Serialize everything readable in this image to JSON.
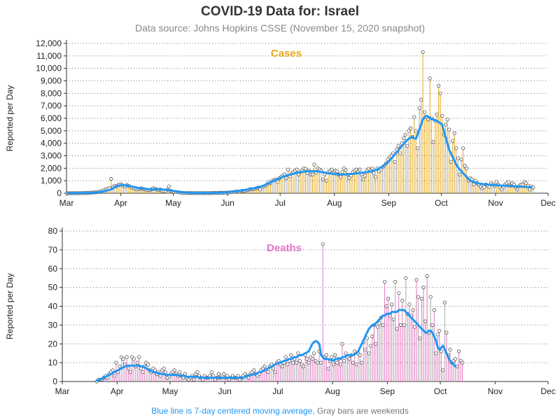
{
  "title": "COVID-19 Data for: Israel",
  "subtitle": "Data source: Johns Hopkins CSSE (November 15, 2020 snapshot)",
  "footnote": {
    "blue_text": "Blue line is 7-day centered moving average,",
    "gray_text": "Gray bars are weekends"
  },
  "colors": {
    "cases": "#e6a817",
    "deaths": "#e377c2",
    "average": "#2196f3",
    "weekend": "#aaaaaa"
  },
  "chart_data": [
    {
      "type": "bar",
      "title": "Cases",
      "ylabel": "Reported per Day",
      "xlabel": "",
      "x_range": [
        "2020-03-01",
        "2020-12-01"
      ],
      "ylim": [
        0,
        12000
      ],
      "y_ticks": [
        "0",
        "1,000",
        "2,000",
        "3,000",
        "4,000",
        "5,000",
        "6,000",
        "7,000",
        "8,000",
        "9,000",
        "10,000",
        "11,000",
        "12,000"
      ],
      "x_ticks": [
        "Mar",
        "Apr",
        "May",
        "Jun",
        "Jul",
        "Aug",
        "Sep",
        "Oct",
        "Nov",
        "Dec"
      ],
      "grid": "horizontal dotted",
      "start_date": "2020-03-01",
      "series": [
        {
          "name": "Reported per Day",
          "values": [
            1,
            0,
            1,
            2,
            5,
            3,
            5,
            8,
            10,
            12,
            15,
            20,
            25,
            40,
            50,
            60,
            70,
            80,
            100,
            150,
            200,
            250,
            300,
            350,
            400,
            1150,
            500,
            600,
            550,
            650,
            700,
            700,
            600,
            550,
            650,
            600,
            500,
            450,
            400,
            350,
            300,
            350,
            400,
            350,
            300,
            280,
            250,
            250,
            300,
            400,
            350,
            300,
            250,
            300,
            200,
            150,
            150,
            280,
            550,
            200,
            150,
            100,
            100,
            80,
            60,
            40,
            30,
            20,
            20,
            15,
            15,
            15,
            10,
            10,
            10,
            10,
            10,
            8,
            8,
            10,
            10,
            15,
            15,
            20,
            20,
            25,
            30,
            35,
            40,
            30,
            40,
            50,
            60,
            70,
            80,
            100,
            120,
            150,
            120,
            160,
            200,
            180,
            220,
            250,
            300,
            330,
            320,
            350,
            400,
            450,
            300,
            500,
            550,
            600,
            700,
            900,
            800,
            1000,
            1050,
            1100,
            900,
            1200,
            1300,
            1400,
            1500,
            1200,
            1900,
            1350,
            1600,
            1700,
            1800,
            1900,
            1500,
            1700,
            1800,
            2000,
            1950,
            1600,
            1800,
            1500,
            1500,
            2300,
            1650,
            2000,
            1900,
            1800,
            1100,
            1500,
            1000,
            1700,
            1800,
            1900,
            1600,
            1800,
            1750,
            1500,
            1300,
            1700,
            2000,
            1850,
            1500,
            1200,
            1400,
            1700,
            1800,
            1900,
            1700,
            1900,
            1500,
            1100,
            1400,
            1800,
            1950,
            1800,
            2000,
            1600,
            1300,
            2000,
            1750,
            1900,
            2100,
            2200,
            2400,
            2700,
            2900,
            3000,
            3200,
            2500,
            3500,
            3800,
            3200,
            4000,
            4400,
            4700,
            3800,
            5000,
            5200,
            4500,
            6100,
            5000,
            3600,
            6800,
            7500,
            11300,
            6500,
            6100,
            5900,
            9200,
            6000,
            4100,
            5800,
            6300,
            8600,
            8000,
            6200,
            4700,
            5500,
            5900,
            5100,
            2500,
            4200,
            4800,
            3600,
            2800,
            1500,
            2700,
            3600,
            2200,
            2000,
            1000,
            1200,
            1100,
            700,
            1000,
            800,
            700,
            500,
            400,
            500,
            700,
            600,
            500,
            800,
            700,
            600,
            900,
            700,
            500,
            300,
            500,
            700,
            800,
            900,
            600,
            800,
            700,
            500,
            300,
            600,
            700,
            700,
            900,
            800,
            600,
            300,
            550,
            450
          ],
          "moving_average": [
            5,
            5,
            5,
            6,
            6,
            7,
            8,
            9,
            11,
            13,
            16,
            20,
            24,
            30,
            38,
            48,
            58,
            70,
            86,
            104,
            126,
            156,
            180,
            236,
            264,
            300,
            380,
            500,
            550,
            600,
            600,
            650,
            650,
            640,
            620,
            590,
            570,
            540,
            500,
            470,
            430,
            400,
            380,
            370,
            360,
            350,
            330,
            310,
            300,
            300,
            310,
            310,
            320,
            320,
            300,
            290,
            280,
            270,
            250,
            230,
            200,
            170,
            140,
            110,
            90,
            80,
            70,
            60,
            50,
            40,
            30,
            25,
            20,
            15,
            15,
            15,
            15,
            15,
            15,
            15,
            20,
            20,
            25,
            25,
            30,
            35,
            40,
            45,
            50,
            60,
            65,
            75,
            90,
            100,
            110,
            130,
            150,
            160,
            180,
            200,
            220,
            250,
            270,
            300,
            330,
            360,
            380,
            410,
            440,
            480,
            520,
            560,
            610,
            670,
            740,
            800,
            850,
            930,
            1000,
            1060,
            1110,
            1180,
            1250,
            1310,
            1360,
            1400,
            1440,
            1480,
            1520,
            1560,
            1600,
            1630,
            1650,
            1680,
            1700,
            1720,
            1730,
            1750,
            1760,
            1760,
            1760,
            1760,
            1760,
            1740,
            1720,
            1700,
            1680,
            1650,
            1620,
            1600,
            1580,
            1560,
            1540,
            1520,
            1510,
            1500,
            1500,
            1500,
            1500,
            1510,
            1520,
            1530,
            1540,
            1550,
            1560,
            1580,
            1600,
            1620,
            1640,
            1650,
            1660,
            1680,
            1700,
            1730,
            1760,
            1800,
            1850,
            1900,
            1980,
            2060,
            2150,
            2250,
            2360,
            2480,
            2620,
            2780,
            2940,
            3100,
            3270,
            3440,
            3610,
            3780,
            3950,
            4100,
            4250,
            4360,
            4450,
            4500,
            4400,
            4350,
            4700,
            5100,
            5500,
            5900,
            6100,
            6200,
            6150,
            6000,
            5950,
            5900,
            5850,
            5800,
            5700,
            5600,
            5500,
            5000,
            4500,
            4000,
            3500,
            3200,
            2900,
            2600,
            2300,
            2100,
            1900,
            1750,
            1600,
            1450,
            1300,
            1150,
            1000,
            950,
            900,
            850,
            800,
            780,
            760,
            740,
            720,
            700,
            690,
            680,
            670,
            660,
            650,
            640,
            630,
            620,
            610,
            600,
            600,
            590,
            580,
            570,
            560,
            560,
            550,
            540,
            530,
            520,
            510,
            500,
            500,
            490,
            480,
            470
          ]
        }
      ]
    },
    {
      "type": "bar",
      "title": "Deaths",
      "ylabel": "Reported per Day",
      "xlabel": "",
      "x_range": [
        "2020-03-01",
        "2020-12-01"
      ],
      "ylim": [
        0,
        80
      ],
      "y_ticks": [
        "0",
        "10",
        "20",
        "30",
        "40",
        "50",
        "60",
        "70",
        "80"
      ],
      "x_ticks": [
        "Mar",
        "Apr",
        "May",
        "Jun",
        "Jul",
        "Aug",
        "Sep",
        "Oct",
        "Nov",
        "Dec"
      ],
      "grid": "horizontal dotted",
      "start_date": "2020-03-20",
      "series": [
        {
          "name": "Reported per Day",
          "values": [
            0,
            1,
            1,
            1,
            2,
            3,
            2,
            4,
            5,
            6,
            3,
            10,
            5,
            8,
            13,
            12,
            9,
            13,
            7,
            5,
            13,
            12,
            8,
            10,
            13,
            7,
            5,
            8,
            10,
            9,
            6,
            5,
            7,
            6,
            4,
            5,
            3,
            6,
            7,
            5,
            2,
            3,
            4,
            5,
            6,
            4,
            3,
            5,
            3,
            2,
            4,
            2,
            1,
            2,
            3,
            1,
            4,
            5,
            3,
            2,
            1,
            3,
            2,
            2,
            3,
            5,
            3,
            1,
            2,
            4,
            2,
            3,
            4,
            2,
            3,
            1,
            2,
            3,
            2,
            2,
            3,
            1,
            2,
            3,
            4,
            3,
            2,
            4,
            5,
            6,
            4,
            3,
            4,
            6,
            7,
            8,
            6,
            5,
            8,
            9,
            7,
            5,
            10,
            11,
            9,
            8,
            10,
            13,
            9,
            11,
            14,
            10,
            12,
            10,
            15,
            11,
            9,
            8,
            14,
            12,
            10,
            13,
            12,
            15,
            11,
            10,
            16,
            10,
            73,
            13,
            14,
            7,
            11,
            13,
            9,
            14,
            10,
            12,
            9,
            20,
            11,
            15,
            13,
            12,
            14,
            10,
            16,
            9,
            15,
            14,
            10,
            21,
            17,
            23,
            15,
            19,
            24,
            30,
            20,
            29,
            31,
            34,
            30,
            53,
            40,
            44,
            35,
            41,
            33,
            53,
            28,
            47,
            30,
            43,
            30,
            55,
            36,
            41,
            35,
            38,
            29,
            54,
            45,
            23,
            44,
            50,
            32,
            56,
            26,
            45,
            30,
            38,
            15,
            25,
            27,
            16,
            6,
            42,
            26,
            14,
            17,
            10,
            11,
            12,
            8,
            16,
            11,
            10
          ],
          "moving_average": [
            0.5,
            0.8,
            1,
            1.5,
            2,
            2.5,
            3,
            3.5,
            4,
            4.5,
            5,
            5.5,
            6,
            6.5,
            7,
            7.5,
            8,
            8.5,
            8.5,
            8.5,
            8.5,
            8.5,
            8.5,
            8.5,
            8.5,
            8,
            8,
            7.5,
            7,
            6.5,
            6,
            5.5,
            5,
            5,
            4.5,
            4.5,
            4,
            4,
            4,
            3.5,
            3.5,
            3.5,
            3.5,
            3.5,
            3.5,
            3.5,
            3.5,
            3,
            3,
            3,
            3,
            2.5,
            2.5,
            2.5,
            2.5,
            2.5,
            2.5,
            2.5,
            2,
            2,
            2,
            2,
            2,
            2,
            2,
            2,
            2,
            2,
            2,
            2,
            2,
            2,
            2,
            2,
            2,
            2,
            2,
            2,
            2,
            2,
            2,
            2,
            2,
            2,
            2.5,
            3,
            3,
            3.5,
            3.5,
            4,
            4,
            4.5,
            5,
            5,
            5.5,
            6,
            6.5,
            7,
            7.5,
            8,
            8.5,
            9,
            9.5,
            10,
            10,
            10.5,
            11,
            11,
            11.5,
            12,
            12,
            12.5,
            13,
            13,
            13.5,
            14,
            14,
            14.5,
            15,
            15.5,
            16,
            18,
            20,
            21,
            21.5,
            21,
            20,
            14,
            13,
            12,
            12,
            12,
            11.5,
            11.5,
            11,
            12,
            12,
            12.5,
            12,
            13,
            13,
            13.5,
            14,
            14,
            14,
            14,
            14.5,
            15,
            16,
            18,
            20,
            22,
            24,
            26,
            28,
            29,
            30,
            30,
            31,
            32,
            33,
            34,
            35,
            35,
            36,
            36,
            36,
            37,
            37,
            37,
            37,
            38,
            38,
            38,
            38,
            37,
            36,
            35,
            34,
            33,
            32,
            31,
            30,
            29,
            28,
            27,
            26,
            26,
            27,
            27,
            26,
            24,
            22,
            18,
            17,
            18,
            19,
            17,
            15,
            13,
            11,
            10,
            9,
            8
          ]
        }
      ]
    }
  ]
}
